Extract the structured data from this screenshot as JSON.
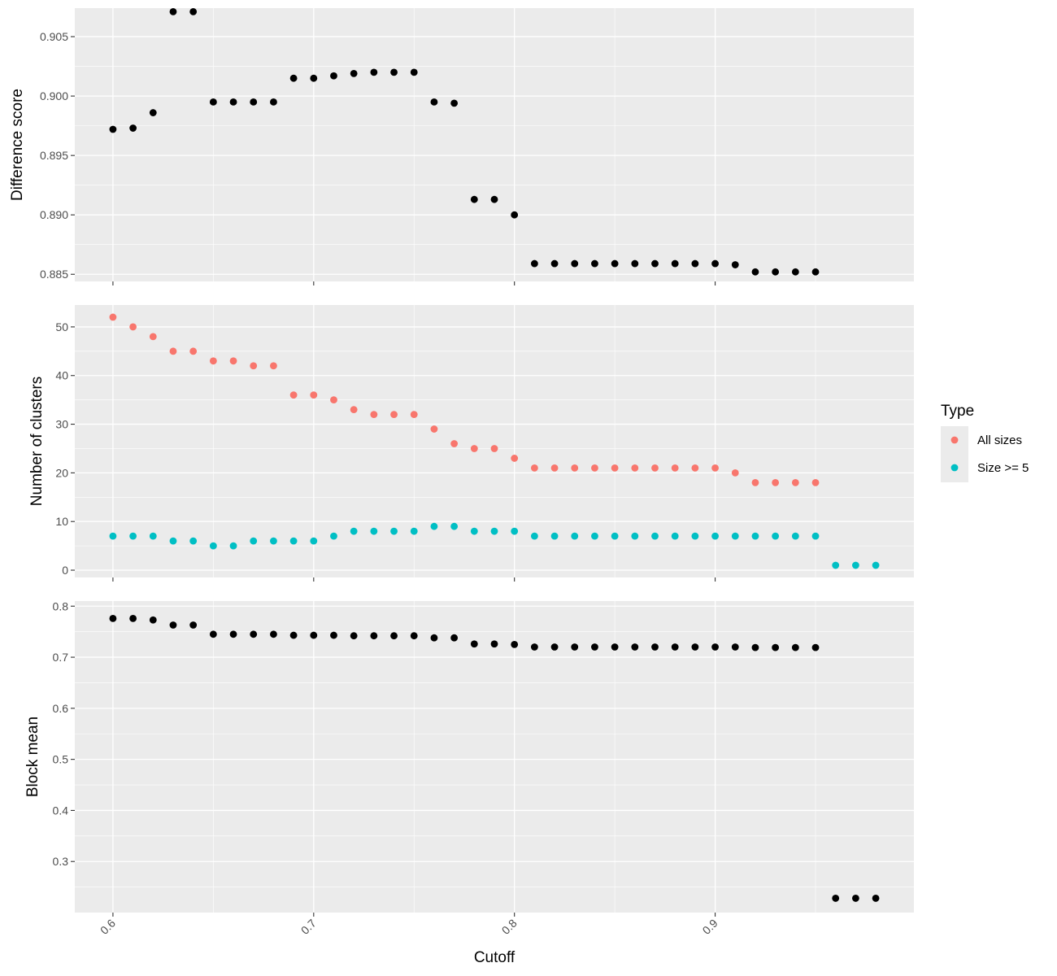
{
  "chart_data": {
    "type": "scatter",
    "xlabel": "Cutoff",
    "x_ticks": [
      "0.6",
      "0.7",
      "0.8",
      "0.9"
    ],
    "xlim": [
      0.581,
      0.999
    ],
    "grid": true,
    "legend": {
      "title": "Type",
      "placement": "right",
      "entries": [
        {
          "label": "All sizes",
          "color": "#F8766D"
        },
        {
          "label": "Size >= 5",
          "color": "#00BFC4"
        }
      ]
    },
    "panels": [
      {
        "ylabel": "Difference score",
        "ylim": [
          0.8844,
          0.9074
        ],
        "y_ticks": [
          "0.885",
          "0.890",
          "0.895",
          "0.900",
          "0.905"
        ],
        "series": [
          {
            "color": "#000000",
            "x": [
              0.6,
              0.61,
              0.62,
              0.63,
              0.64,
              0.65,
              0.66,
              0.67,
              0.68,
              0.69,
              0.7,
              0.71,
              0.72,
              0.73,
              0.74,
              0.75,
              0.76,
              0.77,
              0.78,
              0.79,
              0.8,
              0.81,
              0.82,
              0.83,
              0.84,
              0.85,
              0.86,
              0.87,
              0.88,
              0.89,
              0.9,
              0.91,
              0.92,
              0.93,
              0.94,
              0.95
            ],
            "values": [
              0.8972,
              0.8973,
              0.8986,
              0.9071,
              0.9071,
              0.8995,
              0.8995,
              0.8995,
              0.8995,
              0.9015,
              0.9015,
              0.9017,
              0.9019,
              0.902,
              0.902,
              0.902,
              0.8995,
              0.8994,
              0.8913,
              0.8913,
              0.89,
              0.8859,
              0.8859,
              0.8859,
              0.8859,
              0.8859,
              0.8859,
              0.8859,
              0.8859,
              0.8859,
              0.8859,
              0.8858,
              0.8852,
              0.8852,
              0.8852,
              0.8852
            ]
          }
        ]
      },
      {
        "ylabel": "Number of clusters",
        "ylim": [
          -1.5,
          54.5
        ],
        "y_ticks": [
          "0",
          "10",
          "20",
          "30",
          "40",
          "50"
        ],
        "series": [
          {
            "name": "All sizes",
            "color": "#F8766D",
            "x": [
              0.6,
              0.61,
              0.62,
              0.63,
              0.64,
              0.65,
              0.66,
              0.67,
              0.68,
              0.69,
              0.7,
              0.71,
              0.72,
              0.73,
              0.74,
              0.75,
              0.76,
              0.77,
              0.78,
              0.79,
              0.8,
              0.81,
              0.82,
              0.83,
              0.84,
              0.85,
              0.86,
              0.87,
              0.88,
              0.89,
              0.9,
              0.91,
              0.92,
              0.93,
              0.94,
              0.95
            ],
            "values": [
              52,
              50,
              48,
              45,
              45,
              43,
              43,
              42,
              42,
              36,
              36,
              35,
              33,
              32,
              32,
              32,
              29,
              26,
              25,
              25,
              23,
              21,
              21,
              21,
              21,
              21,
              21,
              21,
              21,
              21,
              21,
              20,
              18,
              18,
              18,
              18
            ]
          },
          {
            "name": "Size >= 5",
            "color": "#00BFC4",
            "x": [
              0.6,
              0.61,
              0.62,
              0.63,
              0.64,
              0.65,
              0.66,
              0.67,
              0.68,
              0.69,
              0.7,
              0.71,
              0.72,
              0.73,
              0.74,
              0.75,
              0.76,
              0.77,
              0.78,
              0.79,
              0.8,
              0.81,
              0.82,
              0.83,
              0.84,
              0.85,
              0.86,
              0.87,
              0.88,
              0.89,
              0.9,
              0.91,
              0.92,
              0.93,
              0.94,
              0.95,
              0.96,
              0.97,
              0.98
            ],
            "values": [
              7,
              7,
              7,
              6,
              6,
              5,
              5,
              6,
              6,
              6,
              6,
              7,
              8,
              8,
              8,
              8,
              9,
              9,
              8,
              8,
              8,
              7,
              7,
              7,
              7,
              7,
              7,
              7,
              7,
              7,
              7,
              7,
              7,
              7,
              7,
              7,
              1,
              1,
              1
            ]
          }
        ]
      },
      {
        "ylabel": "Block mean",
        "ylim": [
          0.2,
          0.81
        ],
        "y_ticks": [
          "0.3",
          "0.4",
          "0.5",
          "0.6",
          "0.7",
          "0.8"
        ],
        "series": [
          {
            "color": "#000000",
            "x": [
              0.6,
              0.61,
              0.62,
              0.63,
              0.64,
              0.65,
              0.66,
              0.67,
              0.68,
              0.69,
              0.7,
              0.71,
              0.72,
              0.73,
              0.74,
              0.75,
              0.76,
              0.77,
              0.78,
              0.79,
              0.8,
              0.81,
              0.82,
              0.83,
              0.84,
              0.85,
              0.86,
              0.87,
              0.88,
              0.89,
              0.9,
              0.91,
              0.92,
              0.93,
              0.94,
              0.95,
              0.96,
              0.97,
              0.98
            ],
            "values": [
              0.776,
              0.776,
              0.773,
              0.763,
              0.763,
              0.745,
              0.745,
              0.745,
              0.745,
              0.743,
              0.743,
              0.743,
              0.742,
              0.742,
              0.742,
              0.742,
              0.738,
              0.738,
              0.726,
              0.726,
              0.725,
              0.72,
              0.72,
              0.72,
              0.72,
              0.72,
              0.72,
              0.72,
              0.72,
              0.72,
              0.72,
              0.72,
              0.719,
              0.719,
              0.719,
              0.719,
              0.228,
              0.228,
              0.228
            ]
          }
        ]
      }
    ]
  }
}
